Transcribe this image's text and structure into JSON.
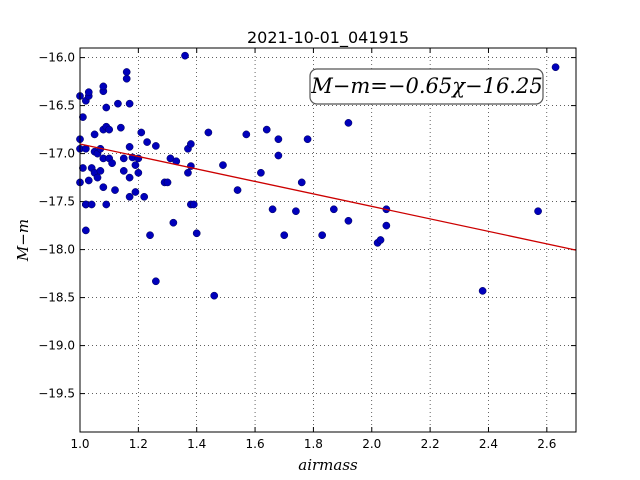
{
  "chart_data": {
    "type": "scatter",
    "title": "2021-10-01_041915",
    "xlabel": "airmass",
    "ylabel": "M−m",
    "xlim": [
      1.0,
      2.7
    ],
    "ylim": [
      -19.9,
      -15.9
    ],
    "y_inverted": true,
    "grid": true,
    "x_ticks": [
      1.0,
      1.2,
      1.4,
      1.6,
      1.8,
      2.0,
      2.2,
      2.4,
      2.6
    ],
    "x_tick_labels": [
      "1.0",
      "1.2",
      "1.4",
      "1.6",
      "1.8",
      "2.0",
      "2.2",
      "2.4",
      "2.6"
    ],
    "y_ticks": [
      -16.0,
      -16.5,
      -17.0,
      -17.5,
      -18.0,
      -18.5,
      -19.0,
      -19.5
    ],
    "y_tick_labels": [
      "−16.0",
      "−16.5",
      "−17.0",
      "−17.5",
      "−18.0",
      "−18.5",
      "−19.0",
      "−19.5"
    ],
    "annotation": "M−m=−0.65χ−16.25",
    "annotation_position": "top-right",
    "fit": {
      "slope": -0.65,
      "intercept": -16.25,
      "color": "#cc0000"
    },
    "marker_color": "#0000bb",
    "x": [
      1.0,
      1.0,
      1.0,
      1.0,
      1.01,
      1.01,
      1.02,
      1.02,
      1.02,
      1.02,
      1.02,
      1.03,
      1.03,
      1.03,
      1.04,
      1.04,
      1.05,
      1.05,
      1.05,
      1.06,
      1.06,
      1.07,
      1.07,
      1.08,
      1.08,
      1.08,
      1.08,
      1.08,
      1.09,
      1.09,
      1.09,
      1.1,
      1.1,
      1.11,
      1.12,
      1.13,
      1.14,
      1.15,
      1.15,
      1.16,
      1.16,
      1.17,
      1.17,
      1.17,
      1.17,
      1.18,
      1.19,
      1.19,
      1.2,
      1.2,
      1.21,
      1.22,
      1.23,
      1.24,
      1.26,
      1.26,
      1.29,
      1.3,
      1.31,
      1.32,
      1.33,
      1.36,
      1.37,
      1.37,
      1.38,
      1.38,
      1.38,
      1.39,
      1.4,
      1.44,
      1.46,
      1.49,
      1.54,
      1.57,
      1.62,
      1.64,
      1.66,
      1.68,
      1.68,
      1.7,
      1.74,
      1.76,
      1.78,
      1.83,
      1.87,
      1.92,
      1.92,
      2.02,
      2.03,
      2.05,
      2.05,
      2.38,
      2.57,
      2.63
    ],
    "y": [
      -16.4,
      -16.85,
      -16.95,
      -17.3,
      -16.62,
      -17.15,
      -16.45,
      -16.95,
      -17.53,
      -17.53,
      -17.8,
      -16.4,
      -16.36,
      -17.28,
      -17.53,
      -17.15,
      -16.8,
      -16.98,
      -17.2,
      -17.25,
      -17.0,
      -16.95,
      -17.18,
      -16.35,
      -16.3,
      -16.75,
      -17.05,
      -17.35,
      -16.52,
      -16.72,
      -17.53,
      -17.05,
      -16.75,
      -17.1,
      -17.38,
      -16.48,
      -16.73,
      -17.05,
      -17.18,
      -16.15,
      -16.22,
      -16.93,
      -17.25,
      -17.45,
      -16.48,
      -17.04,
      -17.4,
      -17.12,
      -17.2,
      -17.05,
      -16.78,
      -17.45,
      -16.88,
      -17.85,
      -18.33,
      -16.92,
      -17.3,
      -17.3,
      -17.05,
      -17.72,
      -17.08,
      -15.98,
      -17.2,
      -16.95,
      -17.53,
      -16.9,
      -17.13,
      -17.53,
      -17.83,
      -16.78,
      -18.48,
      -17.12,
      -17.38,
      -16.8,
      -17.2,
      -16.75,
      -17.58,
      -16.85,
      -17.02,
      -17.85,
      -17.6,
      -17.3,
      -16.85,
      -17.85,
      -17.58,
      -17.7,
      -16.68,
      -17.93,
      -17.9,
      -17.58,
      -17.75,
      -18.43,
      -17.6,
      -16.1
    ]
  }
}
